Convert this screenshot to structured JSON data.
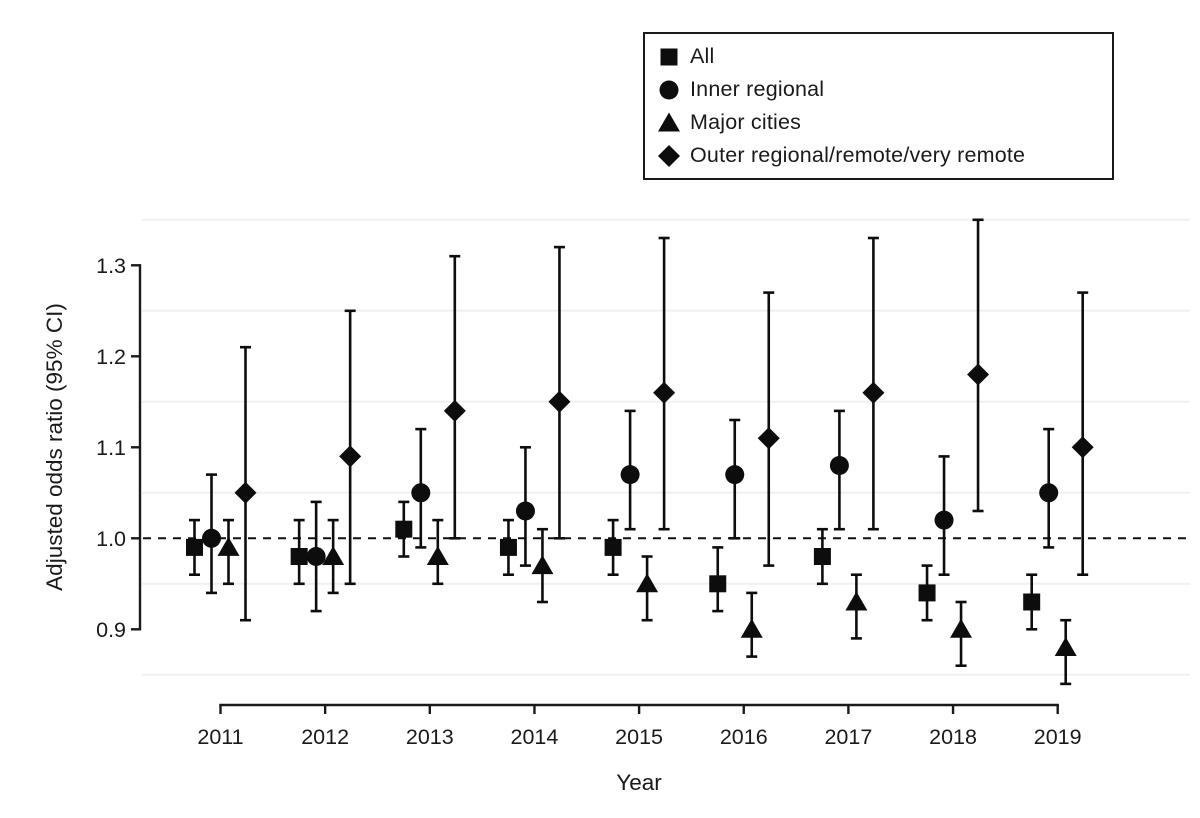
{
  "figure": {
    "background": "#ffffff"
  },
  "colors": {
    "marker": "#0d0d0d",
    "axis": "#1a1a1a",
    "gridline": "#f0f0f0",
    "reference_line": "#111111",
    "text": "#1a1a1a"
  },
  "legend": {
    "position": "top-right",
    "items": [
      {
        "label": "All",
        "marker": "square"
      },
      {
        "label": "Inner regional",
        "marker": "circle"
      },
      {
        "label": "Major cities",
        "marker": "triangle"
      },
      {
        "label": "Outer regional/remote/very remote",
        "marker": "diamond"
      }
    ]
  },
  "chart_data": {
    "type": "scatter",
    "subtype": "forest-plot-errorbars",
    "title": "",
    "xlabel": "Year",
    "ylabel": "Adjusted odds ratio (95% CI)",
    "x": [
      2011,
      2012,
      2013,
      2014,
      2015,
      2016,
      2017,
      2018,
      2019
    ],
    "xtick_labels": [
      "2011",
      "2012",
      "2013",
      "2014",
      "2015",
      "2016",
      "2017",
      "2018",
      "2019"
    ],
    "yticks": [
      0.9,
      1.0,
      1.1,
      1.2,
      1.3
    ],
    "ytick_labels": [
      "0.9",
      "1.0",
      "1.1",
      "1.2",
      "1.3"
    ],
    "ylim": [
      0.82,
      1.38
    ],
    "reference_line": 1.0,
    "minor_gridlines": [
      0.85,
      0.95,
      1.05,
      1.15,
      1.25,
      1.35
    ],
    "grid": "minor-only",
    "legend_position": "top-right",
    "series": [
      {
        "name": "All",
        "marker": "square",
        "points": [
          {
            "year": 2011,
            "or": 0.99,
            "ci_low": 0.96,
            "ci_high": 1.02
          },
          {
            "year": 2012,
            "or": 0.98,
            "ci_low": 0.95,
            "ci_high": 1.02
          },
          {
            "year": 2013,
            "or": 1.01,
            "ci_low": 0.98,
            "ci_high": 1.04
          },
          {
            "year": 2014,
            "or": 0.99,
            "ci_low": 0.96,
            "ci_high": 1.02
          },
          {
            "year": 2015,
            "or": 0.99,
            "ci_low": 0.96,
            "ci_high": 1.02
          },
          {
            "year": 2016,
            "or": 0.95,
            "ci_low": 0.92,
            "ci_high": 0.99
          },
          {
            "year": 2017,
            "or": 0.98,
            "ci_low": 0.95,
            "ci_high": 1.01
          },
          {
            "year": 2018,
            "or": 0.94,
            "ci_low": 0.91,
            "ci_high": 0.97
          },
          {
            "year": 2019,
            "or": 0.93,
            "ci_low": 0.9,
            "ci_high": 0.96
          }
        ]
      },
      {
        "name": "Inner regional",
        "marker": "circle",
        "points": [
          {
            "year": 2011,
            "or": 1.0,
            "ci_low": 0.94,
            "ci_high": 1.07
          },
          {
            "year": 2012,
            "or": 0.98,
            "ci_low": 0.92,
            "ci_high": 1.04
          },
          {
            "year": 2013,
            "or": 1.05,
            "ci_low": 0.99,
            "ci_high": 1.12
          },
          {
            "year": 2014,
            "or": 1.03,
            "ci_low": 0.97,
            "ci_high": 1.1
          },
          {
            "year": 2015,
            "or": 1.07,
            "ci_low": 1.01,
            "ci_high": 1.14
          },
          {
            "year": 2016,
            "or": 1.07,
            "ci_low": 1.0,
            "ci_high": 1.13
          },
          {
            "year": 2017,
            "or": 1.08,
            "ci_low": 1.01,
            "ci_high": 1.14
          },
          {
            "year": 2018,
            "or": 1.02,
            "ci_low": 0.96,
            "ci_high": 1.09
          },
          {
            "year": 2019,
            "or": 1.05,
            "ci_low": 0.99,
            "ci_high": 1.12
          }
        ]
      },
      {
        "name": "Major cities",
        "marker": "triangle",
        "points": [
          {
            "year": 2011,
            "or": 0.99,
            "ci_low": 0.95,
            "ci_high": 1.02
          },
          {
            "year": 2012,
            "or": 0.98,
            "ci_low": 0.94,
            "ci_high": 1.02
          },
          {
            "year": 2013,
            "or": 0.98,
            "ci_low": 0.95,
            "ci_high": 1.02
          },
          {
            "year": 2014,
            "or": 0.97,
            "ci_low": 0.93,
            "ci_high": 1.01
          },
          {
            "year": 2015,
            "or": 0.95,
            "ci_low": 0.91,
            "ci_high": 0.98
          },
          {
            "year": 2016,
            "or": 0.9,
            "ci_low": 0.87,
            "ci_high": 0.94
          },
          {
            "year": 2017,
            "or": 0.93,
            "ci_low": 0.89,
            "ci_high": 0.96
          },
          {
            "year": 2018,
            "or": 0.9,
            "ci_low": 0.86,
            "ci_high": 0.93
          },
          {
            "year": 2019,
            "or": 0.88,
            "ci_low": 0.84,
            "ci_high": 0.91
          }
        ]
      },
      {
        "name": "Outer regional/remote/very remote",
        "marker": "diamond",
        "points": [
          {
            "year": 2011,
            "or": 1.05,
            "ci_low": 0.91,
            "ci_high": 1.21
          },
          {
            "year": 2012,
            "or": 1.09,
            "ci_low": 0.95,
            "ci_high": 1.25
          },
          {
            "year": 2013,
            "or": 1.14,
            "ci_low": 1.0,
            "ci_high": 1.31
          },
          {
            "year": 2014,
            "or": 1.15,
            "ci_low": 1.0,
            "ci_high": 1.32
          },
          {
            "year": 2015,
            "or": 1.16,
            "ci_low": 1.01,
            "ci_high": 1.33
          },
          {
            "year": 2016,
            "or": 1.11,
            "ci_low": 0.97,
            "ci_high": 1.27
          },
          {
            "year": 2017,
            "or": 1.16,
            "ci_low": 1.01,
            "ci_high": 1.33
          },
          {
            "year": 2018,
            "or": 1.18,
            "ci_low": 1.03,
            "ci_high": 1.35
          },
          {
            "year": 2019,
            "or": 1.1,
            "ci_low": 0.96,
            "ci_high": 1.27
          }
        ]
      }
    ]
  }
}
